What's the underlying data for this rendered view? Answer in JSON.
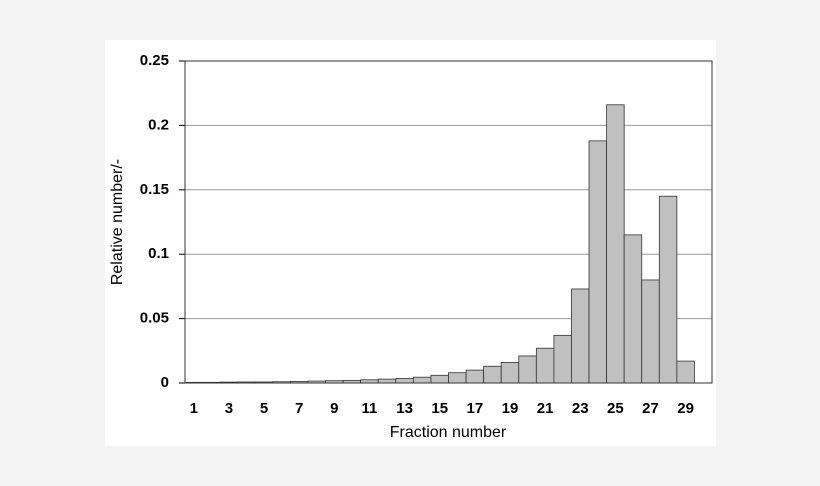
{
  "chart_data": {
    "type": "bar",
    "x_label": "Fraction number",
    "y_label": "Relative number/-",
    "categories": [
      "1",
      null,
      "3",
      null,
      "5",
      null,
      "7",
      null,
      "9",
      null,
      "11",
      null,
      "13",
      null,
      "15",
      null,
      "17",
      null,
      "19",
      null,
      "21",
      null,
      "23",
      null,
      "25",
      null,
      "27",
      null,
      "29"
    ],
    "values": [
      0.0005,
      0.0005,
      0.0007,
      0.0008,
      0.0008,
      0.001,
      0.0012,
      0.0015,
      0.0018,
      0.002,
      0.0025,
      0.003,
      0.0035,
      0.0045,
      0.006,
      0.008,
      0.01,
      0.013,
      0.016,
      0.021,
      0.027,
      0.037,
      0.073,
      0.188,
      0.216,
      0.115,
      0.08,
      0.145,
      0.017
    ],
    "color": "#c0c0c0",
    "ylim": [
      0,
      0.25
    ],
    "yticks": [
      0,
      0.05,
      0.1,
      0.15,
      0.2,
      0.25
    ],
    "grid": true
  }
}
